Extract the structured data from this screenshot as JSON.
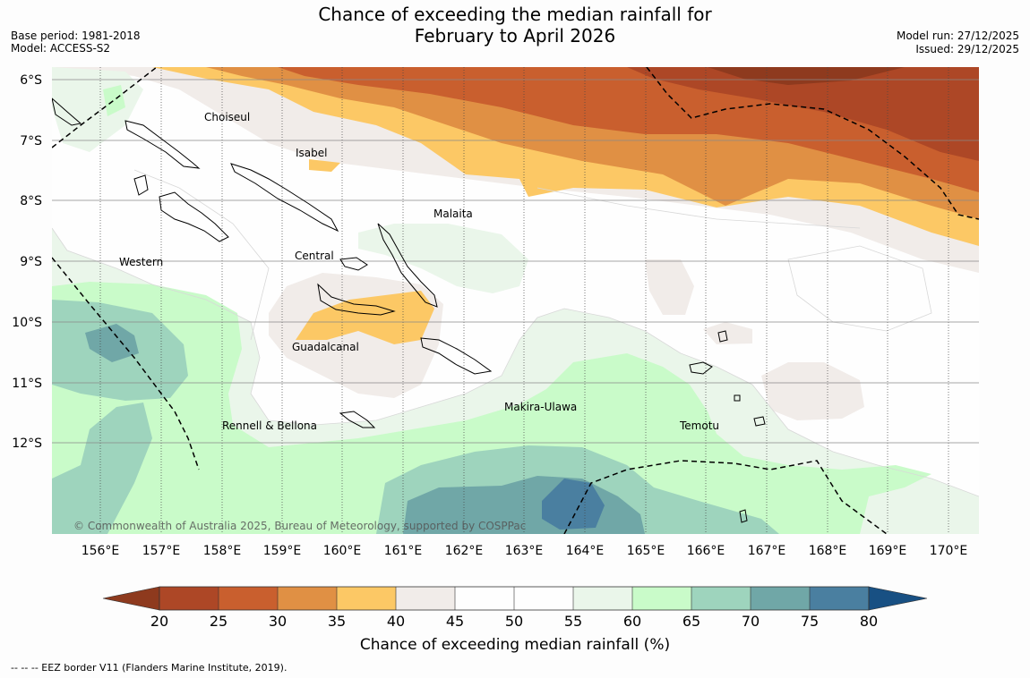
{
  "title": {
    "line1": "Chance of exceeding the median rainfall for",
    "line2": "February to April 2026"
  },
  "meta": {
    "base_period": "Base period: 1981-2018",
    "model": "Model: ACCESS-S2",
    "model_run": "Model run: 27/12/2025",
    "issued": "Issued: 29/12/2025"
  },
  "map": {
    "copyright": "© Commonwealth of Australia 2025, Bureau of Meteorology, supported by COSPPac",
    "lon_labels": [
      "156°E",
      "157°E",
      "158°E",
      "159°E",
      "160°E",
      "161°E",
      "162°E",
      "163°E",
      "164°E",
      "165°E",
      "166°E",
      "167°E",
      "168°E",
      "169°E",
      "170°E"
    ],
    "lat_labels": [
      "6°S",
      "7°S",
      "8°S",
      "9°S",
      "10°S",
      "11°S",
      "12°S"
    ],
    "regions": {
      "choiseul": "Choiseul",
      "isabel": "Isabel",
      "malaita": "Malaita",
      "western": "Western",
      "central": "Central",
      "guadalcanal": "Guadalcanal",
      "makira": "Makira-Ulawa",
      "rennell": "Rennell & Bellona",
      "temotu": "Temotu"
    }
  },
  "colorbar": {
    "labels": [
      "20",
      "25",
      "30",
      "35",
      "40",
      "45",
      "50",
      "55",
      "60",
      "65",
      "70",
      "75",
      "80"
    ],
    "colors": {
      "lt20": "#8e3a1e",
      "c20": "#ad4726",
      "c25": "#c95f2e",
      "c30": "#e09044",
      "c35": "#fcc865",
      "c40": "#f1ece9",
      "c45": "#fefefe",
      "c50": "#fefefe",
      "c55": "#eaf6ea",
      "c60": "#c9fbc9",
      "c65": "#9ed4bd",
      "c70": "#70a7a7",
      "c75": "#4a7fa0",
      "gt80": "#185083"
    },
    "title": "Chance of exceeding median rainfall (%)"
  },
  "footer": "--  --  -- EEZ border V11 (Flanders Marine Institute, 2019)."
}
